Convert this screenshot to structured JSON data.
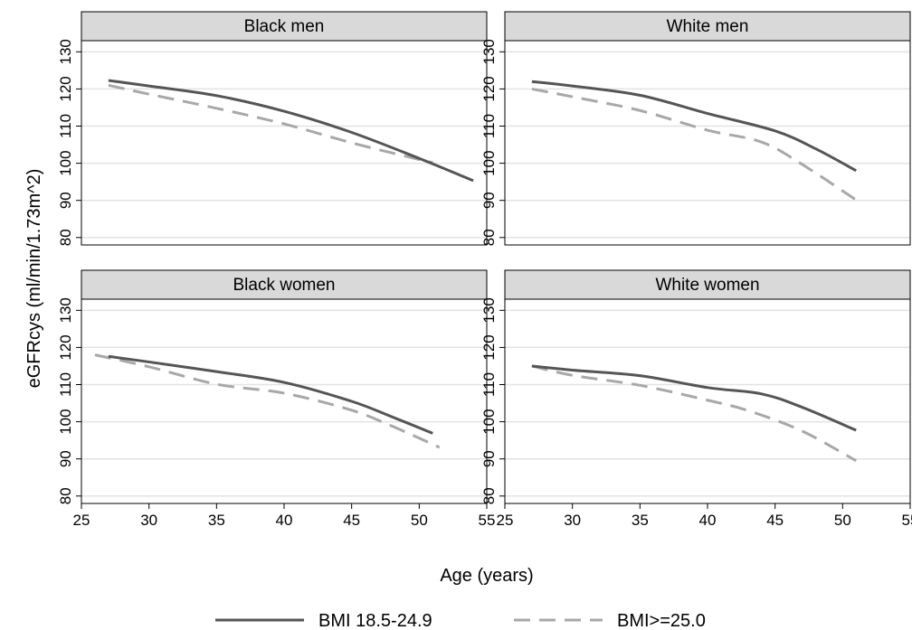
{
  "chart_data": {
    "type": "line",
    "xlabel": "Age (years)",
    "ylabel": "eGFRcys (ml/min/1.73m^2)",
    "xlim": [
      25,
      55
    ],
    "ylim": [
      78,
      133
    ],
    "x_ticks": [
      "25",
      "30",
      "35",
      "40",
      "45",
      "50",
      "55"
    ],
    "y_ticks": [
      "80",
      "90",
      "100",
      "110",
      "120",
      "130"
    ],
    "grid": true,
    "legend_position": "bottom",
    "series_styles": [
      {
        "name": "BMI 18.5-24.9",
        "color": "#555555",
        "dash": "solid"
      },
      {
        "name": "BMI>=25.0",
        "color": "#a8a8a8",
        "dash": "dashed"
      }
    ],
    "panels": [
      {
        "title": "Black men",
        "series": [
          {
            "name": "BMI 18.5-24.9",
            "x": [
              27,
              30,
              35,
              40,
              45,
              50,
              54
            ],
            "y": [
              122.3,
              120.8,
              118.2,
              114,
              108.3,
              101.3,
              95.3
            ]
          },
          {
            "name": "BMI>=25.0",
            "x": [
              27,
              30,
              35,
              40,
              45,
              50,
              51
            ],
            "y": [
              121,
              118.6,
              114.8,
              110.6,
              105.5,
              101,
              100.2
            ]
          }
        ]
      },
      {
        "title": "White men",
        "series": [
          {
            "name": "BMI 18.5-24.9",
            "x": [
              27,
              30,
              35,
              40,
              45,
              48,
              51
            ],
            "y": [
              122,
              120.8,
              118.3,
              113.4,
              108.7,
              103.9,
              98
            ]
          },
          {
            "name": "BMI>=25.0",
            "x": [
              27,
              30,
              35,
              40,
              44,
              47,
              51
            ],
            "y": [
              120,
              117.9,
              114.2,
              108.9,
              105.7,
              99.7,
              90.1
            ]
          }
        ]
      },
      {
        "title": "Black women",
        "series": [
          {
            "name": "BMI 18.5-24.9",
            "x": [
              27,
              30,
              35,
              40,
              45,
              48,
              51
            ],
            "y": [
              117.6,
              116.1,
              113.5,
              110.6,
              105.5,
              101.3,
              96.9
            ]
          },
          {
            "name": "BMI>=25.0",
            "x": [
              26,
              30,
              35,
              40,
              45,
              48,
              51.5
            ],
            "y": [
              118,
              114.8,
              110.1,
              107.7,
              103.1,
              98.8,
              93.1
            ]
          }
        ]
      },
      {
        "title": "White women",
        "series": [
          {
            "name": "BMI 18.5-24.9",
            "x": [
              27,
              30,
              35,
              40,
              44,
              47,
              51
            ],
            "y": [
              115,
              113.9,
              112.4,
              109.2,
              107.5,
              103.9,
              97.7
            ]
          },
          {
            "name": "BMI>=25.0",
            "x": [
              27,
              30,
              35,
              40,
              43,
              47,
              51
            ],
            "y": [
              115,
              112.5,
              109.8,
              105.8,
              103,
              97.5,
              89.5
            ]
          }
        ]
      }
    ]
  }
}
